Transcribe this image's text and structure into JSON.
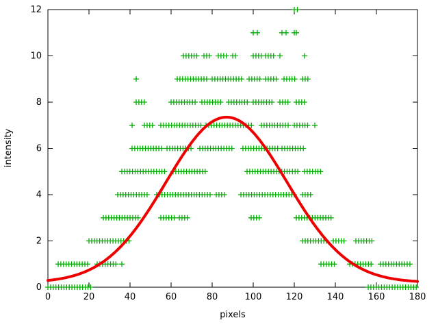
{
  "chart_data": {
    "type": "scatter",
    "title": "",
    "xlabel": "pixels",
    "ylabel": "intensity",
    "xlim": [
      0,
      180
    ],
    "ylim": [
      0,
      12
    ],
    "xticks": [
      0,
      20,
      40,
      60,
      80,
      100,
      120,
      140,
      160,
      180
    ],
    "yticks": [
      0,
      2,
      4,
      6,
      8,
      10,
      12
    ],
    "grid": false,
    "legend": "none",
    "colors": {
      "scatter": "#00aa00",
      "curve": "#ee0000",
      "axis": "#000000",
      "background": "#ffffff"
    },
    "scatter": {
      "marker": "plus",
      "marker_size": 4,
      "sample_step": 1.3,
      "rows": [
        {
          "y": 0,
          "segments": [
            [
              0,
              22
            ],
            [
              156,
              180
            ]
          ],
          "points": []
        },
        {
          "y": 1,
          "segments": [
            [
              5,
              20
            ],
            [
              24,
              34
            ],
            [
              133,
              140
            ],
            [
              147,
              158
            ],
            [
              162,
              177
            ]
          ],
          "points": [
            36
          ]
        },
        {
          "y": 2,
          "segments": [
            [
              20,
              40
            ],
            [
              124,
              136
            ],
            [
              139,
              145
            ],
            [
              150,
              159
            ]
          ],
          "points": []
        },
        {
          "y": 3,
          "segments": [
            [
              27,
              45
            ],
            [
              55,
              62
            ],
            [
              64,
              69
            ],
            [
              99,
              104
            ],
            [
              121,
              139
            ]
          ],
          "points": []
        },
        {
          "y": 4,
          "segments": [
            [
              34,
              49
            ],
            [
              53,
              80
            ],
            [
              82,
              87
            ],
            [
              94,
              120
            ],
            [
              124,
              129
            ]
          ],
          "points": []
        },
        {
          "y": 5,
          "segments": [
            [
              36,
              58
            ],
            [
              61,
              77
            ],
            [
              97,
              122
            ],
            [
              125,
              133
            ]
          ],
          "points": []
        },
        {
          "y": 6,
          "segments": [
            [
              41,
              56
            ],
            [
              58,
              70
            ],
            [
              74,
              90
            ],
            [
              95,
              112
            ],
            [
              114,
              125
            ]
          ],
          "points": []
        },
        {
          "y": 7,
          "segments": [
            [
              47,
              52
            ],
            [
              55,
              75
            ],
            [
              77,
              100
            ],
            [
              104,
              118
            ],
            [
              120,
              127
            ]
          ],
          "points": [
            41,
            130
          ]
        },
        {
          "y": 8,
          "segments": [
            [
              43,
              48
            ],
            [
              60,
              72
            ],
            [
              75,
              85
            ],
            [
              88,
              98
            ],
            [
              100,
              110
            ],
            [
              113,
              118
            ],
            [
              121,
              126
            ]
          ],
          "points": []
        },
        {
          "y": 9,
          "segments": [
            [
              63,
              78
            ],
            [
              80,
              95
            ],
            [
              98,
              104
            ],
            [
              106,
              112
            ],
            [
              115,
              121
            ],
            [
              124,
              127
            ]
          ],
          "points": [
            43
          ]
        },
        {
          "y": 10,
          "segments": [
            [
              66,
              73
            ],
            [
              76,
              79
            ],
            [
              83,
              88
            ],
            [
              90,
              92
            ],
            [
              100,
              104
            ],
            [
              106,
              110
            ]
          ],
          "points": [
            113,
            125
          ]
        },
        {
          "y": 11,
          "segments": [],
          "points": [
            100,
            102,
            114,
            116,
            120,
            121
          ]
        },
        {
          "y": 12,
          "segments": [],
          "points": [
            120,
            121.5
          ]
        }
      ]
    },
    "curve": {
      "model": "gaussian",
      "amplitude": 7.15,
      "center": 87,
      "sigma": 29.5,
      "offset": 0.2,
      "line_width": 4
    }
  }
}
